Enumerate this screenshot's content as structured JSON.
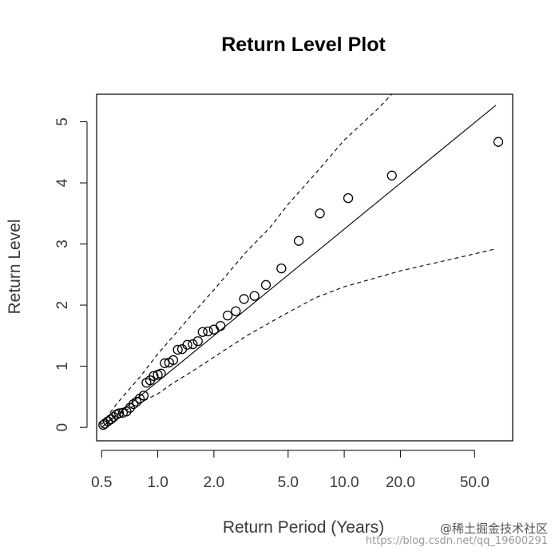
{
  "chart_data": {
    "type": "scatter",
    "title": "Return Level Plot",
    "xlabel": "Return Period (Years)",
    "ylabel": "Return Level",
    "xscale": "log",
    "xlim": [
      0.47,
      80
    ],
    "ylim": [
      -0.22,
      5.45
    ],
    "xticks": [
      0.5,
      1.0,
      2.0,
      5.0,
      10.0,
      20.0,
      50.0
    ],
    "xtick_labels": [
      "0.5",
      "1.0",
      "2.0",
      "5.0",
      "10.0",
      "20.0",
      "50.0"
    ],
    "yticks": [
      0,
      1,
      2,
      3,
      4,
      5
    ],
    "ytick_labels": [
      "0",
      "1",
      "2",
      "3",
      "4",
      "5"
    ],
    "grid": false,
    "legend": "none",
    "series": [
      {
        "kind": "points",
        "marker": "open-circle",
        "points": [
          [
            0.51,
            0.04
          ],
          [
            0.52,
            0.06
          ],
          [
            0.54,
            0.1
          ],
          [
            0.56,
            0.13
          ],
          [
            0.58,
            0.17
          ],
          [
            0.6,
            0.21
          ],
          [
            0.62,
            0.23
          ],
          [
            0.65,
            0.24
          ],
          [
            0.68,
            0.26
          ],
          [
            0.71,
            0.32
          ],
          [
            0.74,
            0.38
          ],
          [
            0.77,
            0.42
          ],
          [
            0.8,
            0.47
          ],
          [
            0.84,
            0.52
          ],
          [
            0.87,
            0.73
          ],
          [
            0.91,
            0.77
          ],
          [
            0.95,
            0.84
          ],
          [
            1.0,
            0.86
          ],
          [
            1.04,
            0.88
          ],
          [
            1.09,
            1.05
          ],
          [
            1.15,
            1.06
          ],
          [
            1.21,
            1.1
          ],
          [
            1.28,
            1.27
          ],
          [
            1.35,
            1.28
          ],
          [
            1.44,
            1.35
          ],
          [
            1.54,
            1.36
          ],
          [
            1.64,
            1.41
          ],
          [
            1.74,
            1.56
          ],
          [
            1.86,
            1.57
          ],
          [
            2.0,
            1.6
          ],
          [
            2.17,
            1.66
          ],
          [
            2.37,
            1.83
          ],
          [
            2.62,
            1.9
          ],
          [
            2.9,
            2.1
          ],
          [
            3.3,
            2.15
          ],
          [
            3.8,
            2.33
          ],
          [
            4.6,
            2.6
          ],
          [
            5.7,
            3.05
          ],
          [
            7.4,
            3.5
          ],
          [
            10.5,
            3.75
          ],
          [
            18.0,
            4.12
          ],
          [
            67.0,
            4.67
          ]
        ]
      },
      {
        "kind": "line",
        "style": "solid",
        "points": [
          [
            0.5,
            0.0
          ],
          [
            65.0,
            5.27
          ]
        ]
      },
      {
        "kind": "line",
        "style": "dashed",
        "points": [
          [
            0.5,
            0.05
          ],
          [
            0.6,
            0.38
          ],
          [
            0.8,
            0.82
          ],
          [
            1.0,
            1.2
          ],
          [
            1.5,
            1.82
          ],
          [
            2.0,
            2.25
          ],
          [
            3.0,
            2.88
          ],
          [
            4.0,
            3.27
          ],
          [
            5.0,
            3.65
          ],
          [
            7.0,
            4.15
          ],
          [
            10.0,
            4.7
          ],
          [
            15.0,
            5.2
          ],
          [
            18.0,
            5.45
          ]
        ]
      },
      {
        "kind": "line",
        "style": "dashed",
        "points": [
          [
            0.5,
            0.0
          ],
          [
            0.6,
            0.2
          ],
          [
            0.8,
            0.4
          ],
          [
            1.0,
            0.55
          ],
          [
            1.2,
            0.72
          ],
          [
            1.5,
            0.9
          ],
          [
            2.0,
            1.15
          ],
          [
            3.0,
            1.5
          ],
          [
            5.0,
            1.88
          ],
          [
            7.0,
            2.12
          ],
          [
            10.0,
            2.3
          ],
          [
            20.0,
            2.56
          ],
          [
            40.0,
            2.77
          ],
          [
            65.0,
            2.92
          ]
        ]
      }
    ]
  },
  "watermark": {
    "handle": "@稀土掘金技术社区",
    "url": "https://blog.csdn.net/qq_19600291"
  }
}
